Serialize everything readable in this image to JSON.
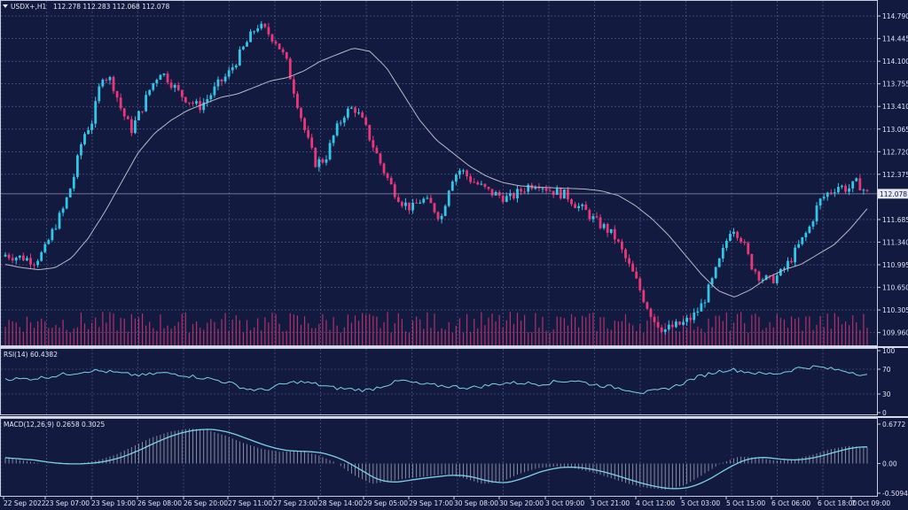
{
  "header": {
    "symbol": "USDX+,H1",
    "ohlc": "112.278 112.283 112.068 112.078"
  },
  "price_axis": {
    "ticks": [
      "114.790",
      "114.445",
      "114.100",
      "113.755",
      "113.410",
      "113.065",
      "112.720",
      "112.375",
      "111.685",
      "111.340",
      "110.995",
      "110.650",
      "110.305",
      "109.960"
    ],
    "last_price": "112.078"
  },
  "rsi": {
    "label": "RSI(14) 60.4382",
    "ticks": [
      "100",
      "70",
      "30",
      "0"
    ]
  },
  "macd": {
    "label": "MACD(12,26,9) 0.2658 0.3025",
    "ticks": [
      "0.6772",
      "0.00",
      "-0.5094"
    ]
  },
  "time_axis": [
    "22 Sep 2022",
    "23 Sep 07:00",
    "23 Sep 19:00",
    "26 Sep 08:00",
    "26 Sep 20:00",
    "27 Sep 11:00",
    "27 Sep 23:00",
    "28 Sep 14:00",
    "29 Sep 05:00",
    "29 Sep 17:00",
    "30 Sep 08:00",
    "30 Sep 20:00",
    "3 Oct 09:00",
    "3 Oct 21:00",
    "4 Oct 12:00",
    "5 Oct 03:00",
    "5 Oct 15:00",
    "6 Oct 06:00",
    "6 Oct 18:00",
    "7 Oct 09:00"
  ],
  "colors": {
    "background": "#121a40",
    "grid": "#5a6496",
    "bull": "#34c6e4",
    "bear": "#e8387a",
    "ma": "#b8b8c8",
    "rsi_line": "#7fd0e6",
    "macd_line": "#7fd0e6",
    "macd_hist": "#c8c8d2"
  },
  "chart_data": {
    "type": "candlestick",
    "symbol": "USDX+,H1",
    "price_range": [
      109.82,
      114.98
    ],
    "last_price": 112.078,
    "anchor_closes": [
      111.15,
      111.12,
      111.1,
      111.05,
      111.2,
      111.55,
      111.85,
      112.3,
      112.95,
      113.2,
      113.9,
      113.8,
      113.35,
      113.05,
      113.35,
      113.7,
      113.95,
      113.8,
      113.6,
      113.5,
      113.4,
      113.55,
      113.75,
      113.9,
      114.15,
      114.4,
      114.65,
      114.55,
      114.4,
      114.1,
      113.55,
      113.0,
      112.55,
      112.6,
      113.0,
      113.3,
      113.4,
      113.15,
      112.8,
      112.45,
      112.15,
      111.95,
      111.85,
      112.0,
      111.9,
      111.7,
      112.3,
      112.45,
      112.3,
      112.2,
      112.1,
      112.05,
      112.0,
      112.1,
      112.2,
      112.25,
      112.15,
      112.1,
      112.05,
      111.9,
      111.8,
      111.65,
      111.55,
      111.4,
      111.1,
      110.8,
      110.45,
      110.15,
      110.0,
      110.05,
      110.1,
      110.2,
      110.4,
      110.75,
      111.15,
      111.6,
      111.4,
      111.0,
      110.8,
      110.75,
      110.85,
      111.05,
      111.3,
      111.55,
      111.95,
      112.1,
      112.2,
      112.15,
      112.25,
      112.08
    ],
    "moving_average": [
      111.0,
      110.95,
      110.92,
      110.95,
      111.1,
      111.4,
      111.8,
      112.25,
      112.7,
      113.0,
      113.2,
      113.35,
      113.45,
      113.55,
      113.6,
      113.7,
      113.8,
      113.85,
      113.95,
      114.1,
      114.2,
      114.3,
      114.25,
      114.0,
      113.6,
      113.2,
      112.9,
      112.7,
      112.5,
      112.35,
      112.25,
      112.2,
      112.18,
      112.17,
      112.16,
      112.15,
      112.12,
      112.05,
      111.9,
      111.7,
      111.45,
      111.15,
      110.85,
      110.6,
      110.5,
      110.62,
      110.8,
      110.92,
      111.0,
      111.15,
      111.3,
      111.55,
      111.85
    ],
    "rsi": {
      "period": 14,
      "last": 60.4382,
      "range": [
        0,
        100
      ],
      "levels": [
        70,
        30
      ],
      "anchors": [
        55,
        54,
        56,
        60,
        64,
        68,
        66,
        62,
        60,
        64,
        62,
        58,
        54,
        48,
        38,
        36,
        45,
        50,
        46,
        40,
        38,
        36,
        44,
        52,
        46,
        44,
        42,
        40,
        44,
        48,
        48,
        46,
        50,
        52,
        46,
        42,
        38,
        32,
        36,
        44,
        56,
        64,
        70,
        66,
        62,
        64,
        72,
        74,
        70,
        66,
        60
      ]
    },
    "macd": {
      "params": [
        12,
        26,
        9
      ],
      "main": 0.2658,
      "signal": 0.3025,
      "range": [
        -0.5094,
        0.6772
      ],
      "line_anchors": [
        0.1,
        0.05,
        0.0,
        -0.01,
        0.0,
        0.05,
        0.15,
        0.3,
        0.45,
        0.55,
        0.6,
        0.58,
        0.48,
        0.35,
        0.25,
        0.2,
        0.22,
        0.15,
        0.02,
        -0.2,
        -0.35,
        -0.3,
        -0.25,
        -0.22,
        -0.18,
        -0.25,
        -0.35,
        -0.32,
        -0.18,
        -0.08,
        -0.05,
        -0.08,
        -0.15,
        -0.25,
        -0.35,
        -0.42,
        -0.45,
        -0.38,
        -0.2,
        0.0,
        0.12,
        0.1,
        0.05,
        0.07,
        0.15,
        0.25,
        0.3,
        0.28
      ]
    }
  }
}
